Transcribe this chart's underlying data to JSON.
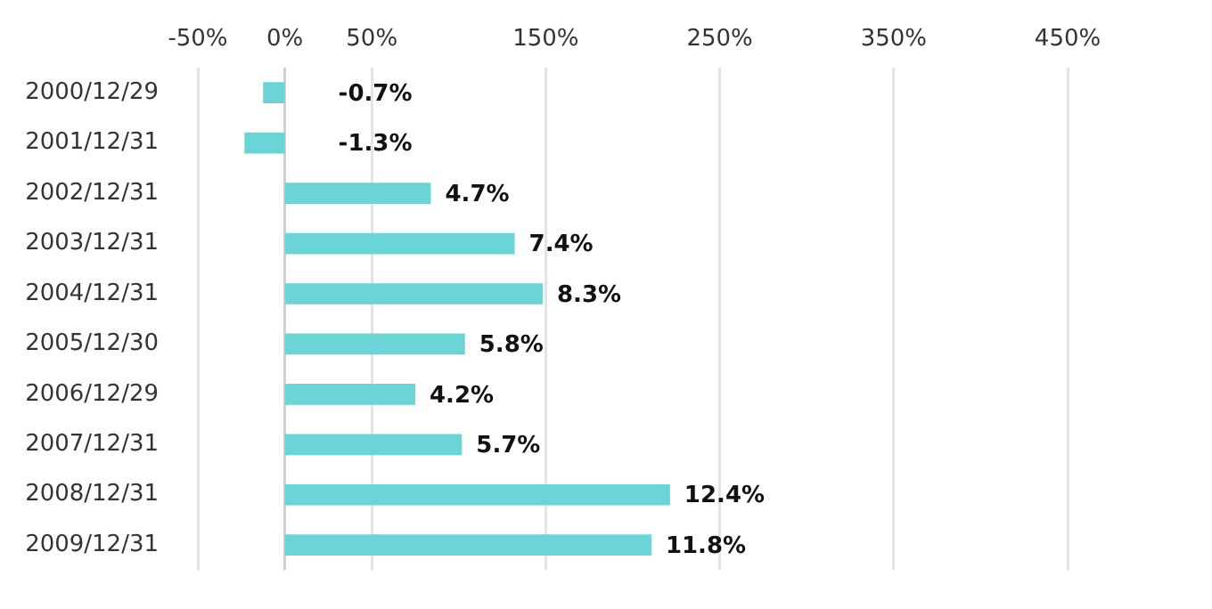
{
  "chart_data": {
    "type": "bar",
    "orientation": "horizontal",
    "categories": [
      "2000/12/29",
      "2001/12/31",
      "2002/12/31",
      "2003/12/31",
      "2004/12/31",
      "2005/12/30",
      "2006/12/29",
      "2007/12/31",
      "2008/12/31",
      "2009/12/31"
    ],
    "values": [
      -0.7,
      -1.3,
      4.7,
      7.4,
      8.3,
      5.8,
      4.2,
      5.7,
      12.4,
      11.8
    ],
    "value_labels": [
      "-0.7%",
      "-1.3%",
      "4.7%",
      "7.4%",
      "8.3%",
      "5.8%",
      "4.2%",
      "5.7%",
      "12.4%",
      "11.8%"
    ],
    "color": "#6bd4d6",
    "xlim": [
      -2.8,
      25.2
    ],
    "x2lim": [
      -50,
      450
    ],
    "x2ticks": [
      {
        "value": -50,
        "label": "-50%"
      },
      {
        "value": 0,
        "label": "0%"
      },
      {
        "value": 50,
        "label": "50%"
      },
      {
        "value": 150,
        "label": "150%"
      },
      {
        "value": 250,
        "label": "250%"
      },
      {
        "value": 350,
        "label": "350%"
      },
      {
        "value": 450,
        "label": "450%"
      }
    ],
    "grid": "x",
    "legend": false
  }
}
